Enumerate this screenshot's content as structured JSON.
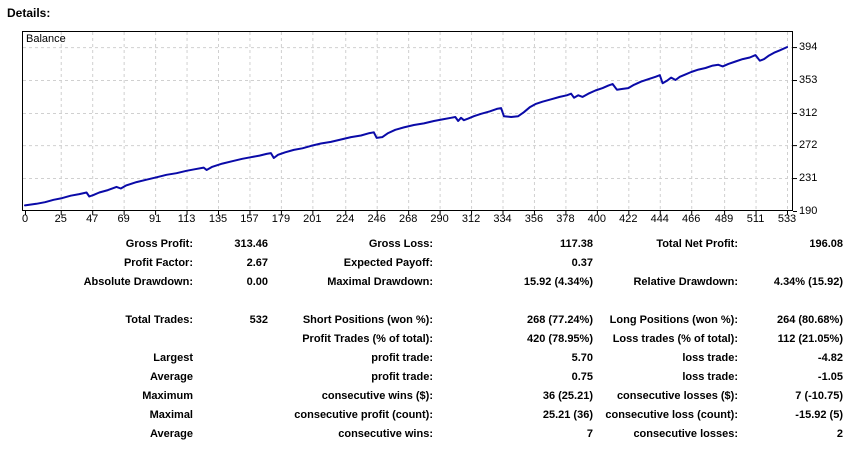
{
  "page": {
    "title": "Details:"
  },
  "chart": {
    "series_label": "Balance",
    "line_color": "#0a0aa8",
    "grid_color": "#d0d0d0",
    "axis_color": "#000000",
    "background": "#ffffff"
  },
  "chart_data": {
    "type": "line",
    "title": "Balance",
    "legend": [
      "Balance"
    ],
    "grid": true,
    "xlim": [
      0,
      537
    ],
    "ylim": [
      190,
      414
    ],
    "x_ticks": [
      0,
      25,
      47,
      69,
      91,
      113,
      135,
      157,
      179,
      201,
      224,
      246,
      268,
      290,
      312,
      334,
      356,
      378,
      400,
      422,
      444,
      466,
      489,
      511,
      533
    ],
    "y_ticks": [
      394,
      353,
      312,
      272,
      231,
      190
    ],
    "x": [
      0,
      8,
      14,
      20,
      26,
      32,
      38,
      43,
      45,
      48,
      52,
      58,
      64,
      67,
      71,
      78,
      85,
      92,
      99,
      106,
      113,
      119,
      125,
      127,
      131,
      138,
      145,
      152,
      158,
      164,
      169,
      172,
      174,
      177,
      182,
      188,
      194,
      200,
      207,
      214,
      221,
      228,
      235,
      241,
      244,
      246,
      250,
      254,
      259,
      265,
      272,
      279,
      286,
      292,
      298,
      301,
      303,
      305,
      307,
      310,
      314,
      319,
      325,
      330,
      333,
      335,
      340,
      345,
      349,
      353,
      357,
      362,
      368,
      374,
      379,
      382,
      384,
      387,
      390,
      394,
      399,
      404,
      408,
      411,
      414,
      418,
      422,
      426,
      431,
      436,
      441,
      444,
      446,
      449,
      452,
      455,
      458,
      462,
      466,
      471,
      476,
      481,
      485,
      488,
      492,
      497,
      502,
      507,
      511,
      514,
      517,
      520,
      524,
      528,
      533
    ],
    "values": [
      197,
      199,
      201,
      204,
      206,
      209,
      211,
      213,
      208,
      210,
      213,
      216,
      220,
      218,
      222,
      226,
      229,
      232,
      235,
      237,
      240,
      242,
      244,
      241,
      245,
      249,
      252,
      255,
      257,
      259,
      261,
      262,
      256,
      260,
      263,
      266,
      268,
      271,
      274,
      276,
      279,
      282,
      284,
      287,
      288,
      281,
      282,
      287,
      291,
      294,
      297,
      299,
      302,
      304,
      306,
      307,
      302,
      306,
      303,
      305,
      308,
      311,
      314,
      317,
      318,
      308,
      307,
      308,
      313,
      319,
      323,
      326,
      329,
      332,
      334,
      336,
      331,
      334,
      332,
      336,
      340,
      343,
      346,
      348,
      341,
      342,
      343,
      347,
      351,
      354,
      357,
      359,
      349,
      352,
      356,
      353,
      357,
      360,
      363,
      366,
      368,
      371,
      372,
      370,
      373,
      376,
      379,
      381,
      384,
      377,
      379,
      383,
      387,
      390,
      394
    ]
  },
  "stats": {
    "rows": [
      {
        "l1": "Gross Profit:",
        "v1": "313.46",
        "l2": "Gross Loss:",
        "v2": "117.38",
        "l3": "Total Net Profit:",
        "v3": "196.08"
      },
      {
        "l1": "Profit Factor:",
        "v1": "2.67",
        "l2": "Expected Payoff:",
        "v2": "0.37",
        "l3": "",
        "v3": ""
      },
      {
        "l1": "Absolute Drawdown:",
        "v1": "0.00",
        "l2": "Maximal Drawdown:",
        "v2": "15.92 (4.34%)",
        "l3": "Relative Drawdown:",
        "v3": "4.34% (15.92)"
      },
      {
        "spacer": true
      },
      {
        "l1": "Total Trades:",
        "v1": "532",
        "l2": "Short Positions (won %):",
        "v2": "268 (77.24%)",
        "l3": "Long Positions (won %):",
        "v3": "264 (80.68%)"
      },
      {
        "l1": "",
        "v1": "",
        "l2": "Profit Trades (% of total):",
        "v2": "420 (78.95%)",
        "l3": "Loss trades (% of total):",
        "v3": "112 (21.05%)"
      },
      {
        "l1": "Largest",
        "v1": "",
        "l2": "profit trade:",
        "v2": "5.70",
        "l3": "loss trade:",
        "v3": "-4.82"
      },
      {
        "l1": "Average",
        "v1": "",
        "l2": "profit trade:",
        "v2": "0.75",
        "l3": "loss trade:",
        "v3": "-1.05"
      },
      {
        "l1": "Maximum",
        "v1": "",
        "l2": "consecutive wins ($):",
        "v2": "36 (25.21)",
        "l3": "consecutive losses ($):",
        "v3": "7 (-10.75)"
      },
      {
        "l1": "Maximal",
        "v1": "",
        "l2": "consecutive profit (count):",
        "v2": "25.21 (36)",
        "l3": "consecutive loss (count):",
        "v3": "-15.92 (5)"
      },
      {
        "l1": "Average",
        "v1": "",
        "l2": "consecutive wins:",
        "v2": "7",
        "l3": "consecutive losses:",
        "v3": "2"
      }
    ]
  }
}
